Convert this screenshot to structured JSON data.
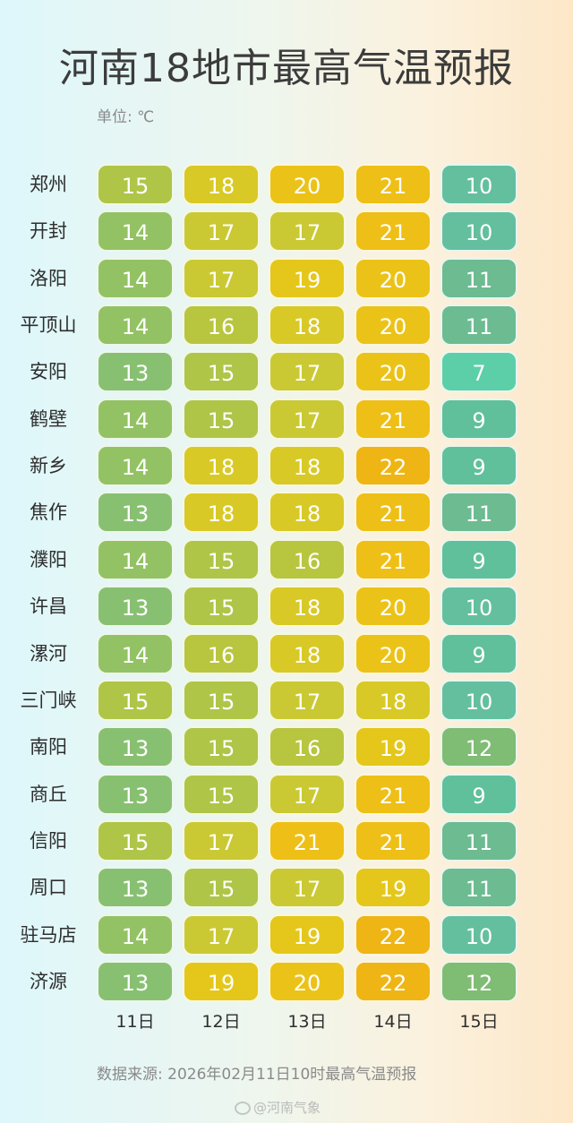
{
  "title": "河南18地市最高气温预报",
  "unit": "单位: ℃",
  "source": "数据来源: 2026年02月11日10时最高气温预报",
  "watermark": "@河南气象",
  "colors": {
    "7": "#5ccfa8",
    "9": "#60c09c",
    "10": "#64bf9f",
    "11": "#6cbb91",
    "12": "#7fbc74",
    "13": "#88c072",
    "14": "#93c264",
    "15": "#aec548",
    "16": "#b8c53f",
    "17": "#cac934",
    "18": "#d8c927",
    "19": "#e4c71a",
    "20": "#ebc318",
    "21": "#eebf16",
    "22": "#eeb515"
  },
  "chart_data": {
    "type": "heatmap",
    "title": "河南18地市最高气温预报",
    "unit": "℃",
    "days": [
      "11日",
      "12日",
      "13日",
      "14日",
      "15日"
    ],
    "rows": [
      {
        "city": "郑州",
        "values": [
          15,
          18,
          20,
          21,
          10
        ]
      },
      {
        "city": "开封",
        "values": [
          14,
          17,
          17,
          21,
          10
        ]
      },
      {
        "city": "洛阳",
        "values": [
          14,
          17,
          19,
          20,
          11
        ]
      },
      {
        "city": "平顶山",
        "values": [
          14,
          16,
          18,
          20,
          11
        ]
      },
      {
        "city": "安阳",
        "values": [
          13,
          15,
          17,
          20,
          7
        ]
      },
      {
        "city": "鹤壁",
        "values": [
          14,
          15,
          17,
          21,
          9
        ]
      },
      {
        "city": "新乡",
        "values": [
          14,
          18,
          18,
          22,
          9
        ]
      },
      {
        "city": "焦作",
        "values": [
          13,
          18,
          18,
          21,
          11
        ]
      },
      {
        "city": "濮阳",
        "values": [
          14,
          15,
          16,
          21,
          9
        ]
      },
      {
        "city": "许昌",
        "values": [
          13,
          15,
          18,
          20,
          10
        ]
      },
      {
        "city": "漯河",
        "values": [
          14,
          16,
          18,
          20,
          9
        ]
      },
      {
        "city": "三门峡",
        "values": [
          15,
          15,
          17,
          18,
          10
        ]
      },
      {
        "city": "南阳",
        "values": [
          13,
          15,
          16,
          19,
          12
        ]
      },
      {
        "city": "商丘",
        "values": [
          13,
          15,
          17,
          21,
          9
        ]
      },
      {
        "city": "信阳",
        "values": [
          15,
          17,
          21,
          21,
          11
        ]
      },
      {
        "city": "周口",
        "values": [
          13,
          15,
          17,
          19,
          11
        ]
      },
      {
        "city": "驻马店",
        "values": [
          14,
          17,
          19,
          22,
          10
        ]
      },
      {
        "city": "济源",
        "values": [
          13,
          19,
          20,
          22,
          12
        ]
      }
    ]
  }
}
